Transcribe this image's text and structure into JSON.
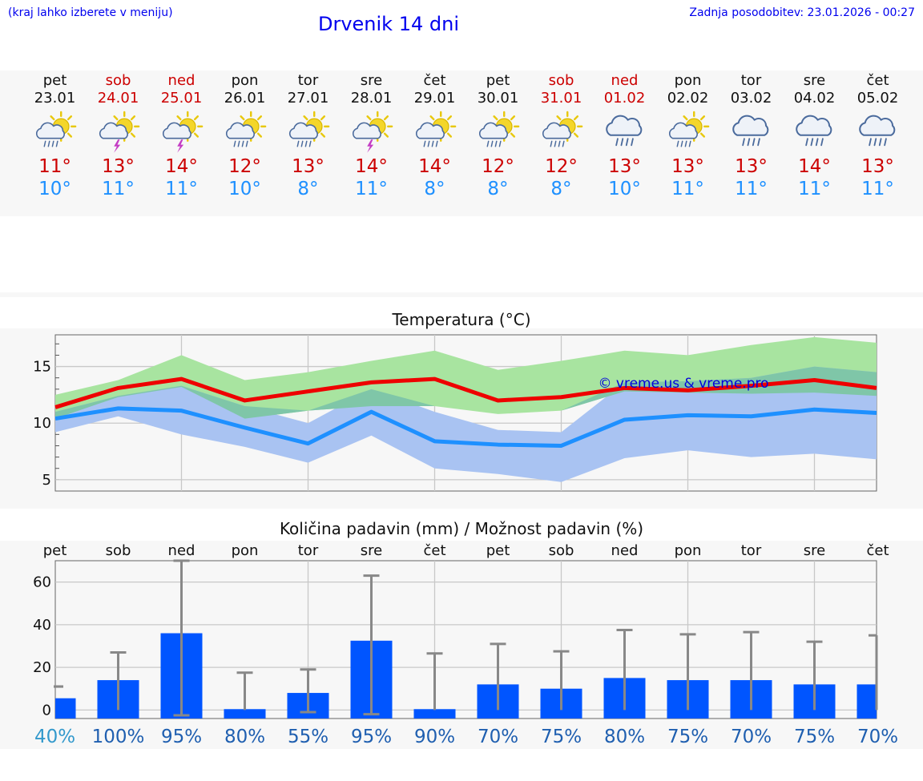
{
  "header": {
    "note": "(kraj lahko izberete v meniju)",
    "title": "Drvenik 14 dni",
    "updated": "Zadnja posodobitev: 23.01.2026 - 00:27"
  },
  "days": [
    {
      "name": "pet",
      "date": "23.01",
      "weekend": false,
      "icon": "sun-cloud-rain-icon",
      "tmax": "11°",
      "tmin": "10°"
    },
    {
      "name": "sob",
      "date": "24.01",
      "weekend": true,
      "icon": "sun-storm-icon",
      "tmax": "13°",
      "tmin": "11°"
    },
    {
      "name": "ned",
      "date": "25.01",
      "weekend": true,
      "icon": "sun-storm-icon",
      "tmax": "14°",
      "tmin": "11°"
    },
    {
      "name": "pon",
      "date": "26.01",
      "weekend": false,
      "icon": "sun-cloud-rain-icon",
      "tmax": "12°",
      "tmin": "10°"
    },
    {
      "name": "tor",
      "date": "27.01",
      "weekend": false,
      "icon": "sun-cloud-rain-icon",
      "tmax": "13°",
      "tmin": "8°"
    },
    {
      "name": "sre",
      "date": "28.01",
      "weekend": false,
      "icon": "sun-storm-icon",
      "tmax": "14°",
      "tmin": "11°"
    },
    {
      "name": "čet",
      "date": "29.01",
      "weekend": false,
      "icon": "sun-cloud-rain-icon",
      "tmax": "14°",
      "tmin": "8°"
    },
    {
      "name": "pet",
      "date": "30.01",
      "weekend": false,
      "icon": "sun-cloud-rain-icon",
      "tmax": "12°",
      "tmin": "8°"
    },
    {
      "name": "sob",
      "date": "31.01",
      "weekend": true,
      "icon": "sun-cloud-rain-icon",
      "tmax": "12°",
      "tmin": "8°"
    },
    {
      "name": "ned",
      "date": "01.02",
      "weekend": true,
      "icon": "cloud-rain-icon",
      "tmax": "13°",
      "tmin": "10°"
    },
    {
      "name": "pon",
      "date": "02.02",
      "weekend": false,
      "icon": "sun-cloud-rain-icon",
      "tmax": "13°",
      "tmin": "11°"
    },
    {
      "name": "tor",
      "date": "03.02",
      "weekend": false,
      "icon": "cloud-rain-icon",
      "tmax": "13°",
      "tmin": "11°"
    },
    {
      "name": "sre",
      "date": "04.02",
      "weekend": false,
      "icon": "cloud-rain-icon",
      "tmax": "14°",
      "tmin": "11°"
    },
    {
      "name": "čet",
      "date": "05.02",
      "weekend": false,
      "icon": "cloud-rain-icon",
      "tmax": "13°",
      "tmin": "11°"
    }
  ],
  "colors": {
    "max_line": "#ee0000",
    "max_band": "#a8e4a0",
    "min_line": "#1e90ff",
    "min_band": "#a9c3f2",
    "overlap_band": "#7fc6a8",
    "bar": "#0055ff",
    "whisker": "#888888",
    "pct_first": "#3399cc",
    "pct": "#1f5fb0"
  },
  "chart_data": [
    {
      "type": "area",
      "title": "Temperatura (°C)",
      "watermark": "© vreme.us & vreme.pro",
      "categories": [
        "23.01",
        "24.01",
        "25.01",
        "26.01",
        "27.01",
        "28.01",
        "29.01",
        "30.01",
        "31.01",
        "01.02",
        "02.02",
        "03.02",
        "04.02",
        "05.02"
      ],
      "ylim": [
        4,
        17.8
      ],
      "yticks": [
        5,
        10,
        15
      ],
      "series": [
        {
          "name": "max",
          "values": [
            11.4,
            13.1,
            13.9,
            12.0,
            12.8,
            13.6,
            13.9,
            12.0,
            12.3,
            13.1,
            12.9,
            13.3,
            13.8,
            13.1
          ]
        },
        {
          "name": "max_upper",
          "values": [
            12.5,
            13.8,
            16.0,
            13.8,
            14.5,
            15.5,
            16.4,
            14.7,
            15.5,
            16.4,
            16.0,
            16.9,
            17.6,
            17.1
          ]
        },
        {
          "name": "max_lower",
          "values": [
            10.4,
            12.3,
            13.2,
            10.4,
            11.1,
            11.5,
            11.5,
            10.8,
            11.1,
            12.8,
            12.7,
            12.6,
            12.7,
            12.4
          ]
        },
        {
          "name": "min",
          "values": [
            10.4,
            11.3,
            11.1,
            9.6,
            8.2,
            11.0,
            8.4,
            8.1,
            8.0,
            10.3,
            10.7,
            10.6,
            11.2,
            10.9
          ]
        },
        {
          "name": "min_upper",
          "values": [
            11.0,
            12.4,
            13.3,
            11.5,
            10.0,
            13.0,
            11.0,
            9.4,
            9.2,
            13.6,
            13.7,
            14.0,
            15.0,
            14.5
          ]
        },
        {
          "name": "min_lower",
          "values": [
            9.2,
            10.6,
            9.0,
            7.9,
            6.5,
            8.9,
            6.0,
            5.5,
            4.8,
            6.9,
            7.6,
            7.0,
            7.3,
            6.8
          ]
        }
      ]
    },
    {
      "type": "bar",
      "title": "Količina padavin (mm) / Možnost padavin (%)",
      "categories": [
        "pet",
        "sob",
        "ned",
        "pon",
        "tor",
        "sre",
        "čet",
        "pet",
        "sob",
        "ned",
        "pon",
        "tor",
        "sre",
        "čet"
      ],
      "ylim": [
        -4,
        70
      ],
      "yticks": [
        0,
        20,
        40,
        60
      ],
      "values": [
        5.5,
        14,
        36,
        0,
        8,
        32.5,
        0,
        12,
        10,
        15,
        14,
        14,
        12,
        12
      ],
      "whisker_low": [
        11,
        0,
        -2.5,
        0,
        -1,
        -2,
        0,
        0,
        0,
        0,
        0,
        0,
        0,
        0
      ],
      "whisker_high": [
        11,
        27,
        70,
        17.5,
        19,
        63,
        26.5,
        31,
        27.5,
        37.5,
        35.5,
        36.5,
        32,
        35
      ],
      "percent_labels": [
        "40%",
        "100%",
        "95%",
        "80%",
        "55%",
        "95%",
        "90%",
        "70%",
        "75%",
        "80%",
        "75%",
        "70%",
        "75%",
        "70%"
      ]
    }
  ]
}
